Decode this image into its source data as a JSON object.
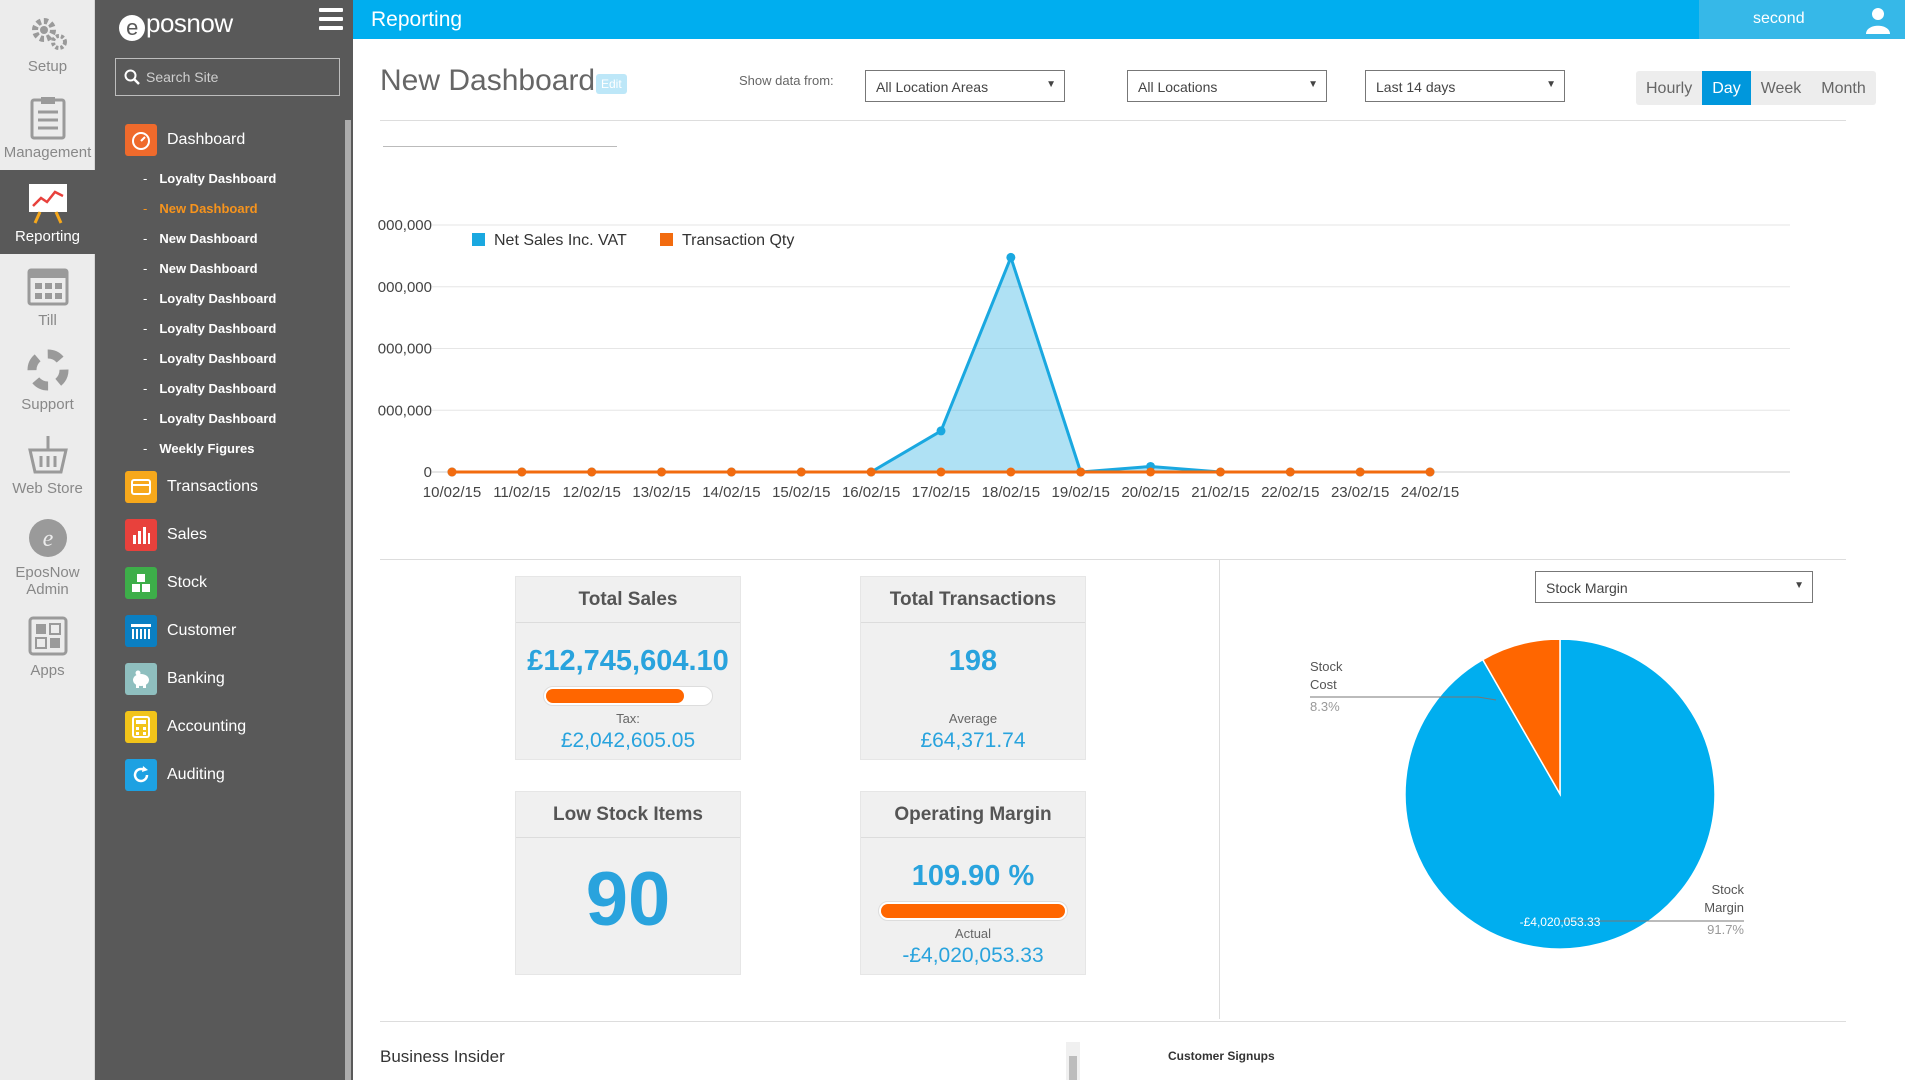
{
  "rail": [
    {
      "label": "Setup",
      "icon": "gears-icon"
    },
    {
      "label": "Management",
      "icon": "clipboard-icon"
    },
    {
      "label": "Reporting",
      "icon": "chart-board-icon"
    },
    {
      "label": "Till",
      "icon": "till-icon"
    },
    {
      "label": "Support",
      "icon": "lifebuoy-icon"
    },
    {
      "label": "Web Store",
      "icon": "basket-icon"
    },
    {
      "label": "EposNow Admin",
      "icon": "admin-icon"
    },
    {
      "label": "Apps",
      "icon": "apps-icon"
    }
  ],
  "sidebar": {
    "logo": "posnow",
    "logo_mark": "e",
    "search_placeholder": "Search Site",
    "dashboard_label": "Dashboard",
    "sub_items": [
      "Loyalty Dashboard",
      "New Dashboard",
      "New Dashboard",
      "New Dashboard",
      "Loyalty Dashboard",
      "Loyalty Dashboard",
      "Loyalty Dashboard",
      "Loyalty Dashboard",
      "Loyalty Dashboard",
      "Weekly Figures"
    ],
    "main_items": [
      {
        "label": "Transactions",
        "color": "#f7a81b"
      },
      {
        "label": "Sales",
        "color": "#e8413c"
      },
      {
        "label": "Stock",
        "color": "#3dae49"
      },
      {
        "label": "Customer",
        "color": "#0a7fc2"
      },
      {
        "label": "Banking",
        "color": "#8fbfbf"
      },
      {
        "label": "Accounting",
        "color": "#f2c41a"
      },
      {
        "label": "Auditing",
        "color": "#1da1e2"
      }
    ]
  },
  "topbar": {
    "title": "Reporting",
    "user": "second"
  },
  "header": {
    "title": "New Dashboard",
    "edit": "Edit",
    "show_label": "Show data from:",
    "area_select": "All Location Areas",
    "location_select": "All Locations",
    "range_select": "Last 14 days",
    "periods": [
      "Hourly",
      "Day",
      "Week",
      "Month"
    ],
    "active_period": "Day"
  },
  "chart_data": {
    "type": "line",
    "categories": [
      "10/02/15",
      "11/02/15",
      "12/02/15",
      "13/02/15",
      "14/02/15",
      "15/02/15",
      "16/02/15",
      "17/02/15",
      "18/02/15",
      "19/02/15",
      "20/02/15",
      "21/02/15",
      "22/02/15",
      "23/02/15",
      "24/02/15"
    ],
    "y_tick_labels": [
      "000,000",
      "000,000",
      "000,000",
      "000,000",
      "0"
    ],
    "ylim": [
      0,
      8000000
    ],
    "series": [
      {
        "name": "Net Sales Inc. VAT",
        "color": "#1aa8e0",
        "values": [
          0,
          0,
          0,
          0,
          0,
          0,
          0,
          1330000,
          6950000,
          0,
          180000,
          0,
          0,
          0,
          0
        ]
      },
      {
        "name": "Transaction Qty",
        "color": "#f26b0f",
        "values": [
          0,
          0,
          0,
          0,
          0,
          0,
          0,
          0,
          0,
          0,
          0,
          0,
          0,
          0,
          0
        ]
      }
    ]
  },
  "kpis": {
    "total_sales": {
      "title": "Total Sales",
      "value": "£12,745,604.10",
      "sub_label": "Tax:",
      "sub_value": "£2,042,605.05",
      "progress": 0.84
    },
    "total_transactions": {
      "title": "Total Transactions",
      "value": "198",
      "sub_label": "Average",
      "sub_value": "£64,371.74"
    },
    "low_stock": {
      "title": "Low Stock Items",
      "value": "90"
    },
    "operating_margin": {
      "title": "Operating Margin",
      "value": "109.90 %",
      "sub_label": "Actual",
      "sub_value": "-£4,020,053.33",
      "progress": 1.0
    }
  },
  "pie": {
    "selector": "Stock Margin",
    "slices": [
      {
        "name": "Stock Margin",
        "label_line1": "Stock",
        "label_line2": "Margin",
        "percent_label": "91.7%",
        "value": 91.7,
        "color": "#00aeef"
      },
      {
        "name": "Stock Cost",
        "label_line1": "Stock",
        "label_line2": "Cost",
        "percent_label": "8.3%",
        "value": 8.3,
        "color": "#ff6600"
      }
    ],
    "inner_label": "-£4,020,053.33"
  },
  "bottom": {
    "business_insider": "Business Insider",
    "customer_signups": "Customer Signups"
  }
}
